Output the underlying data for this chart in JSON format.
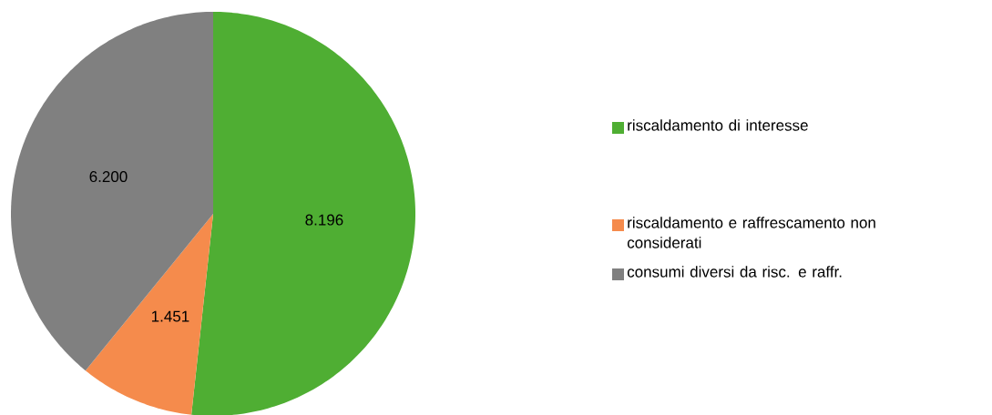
{
  "chart_data": {
    "type": "pie",
    "categories": [
      "riscaldamento di interesse",
      "riscaldamento e raffrescamento non considerati",
      "consumi diversi da risc. e raffr."
    ],
    "values": [
      8196,
      1451,
      6200
    ],
    "colors": [
      "#4fae33",
      "#f58b4c",
      "#808080"
    ],
    "value_labels": [
      "8.196",
      "1.451",
      "6.200"
    ],
    "legend": "right"
  }
}
